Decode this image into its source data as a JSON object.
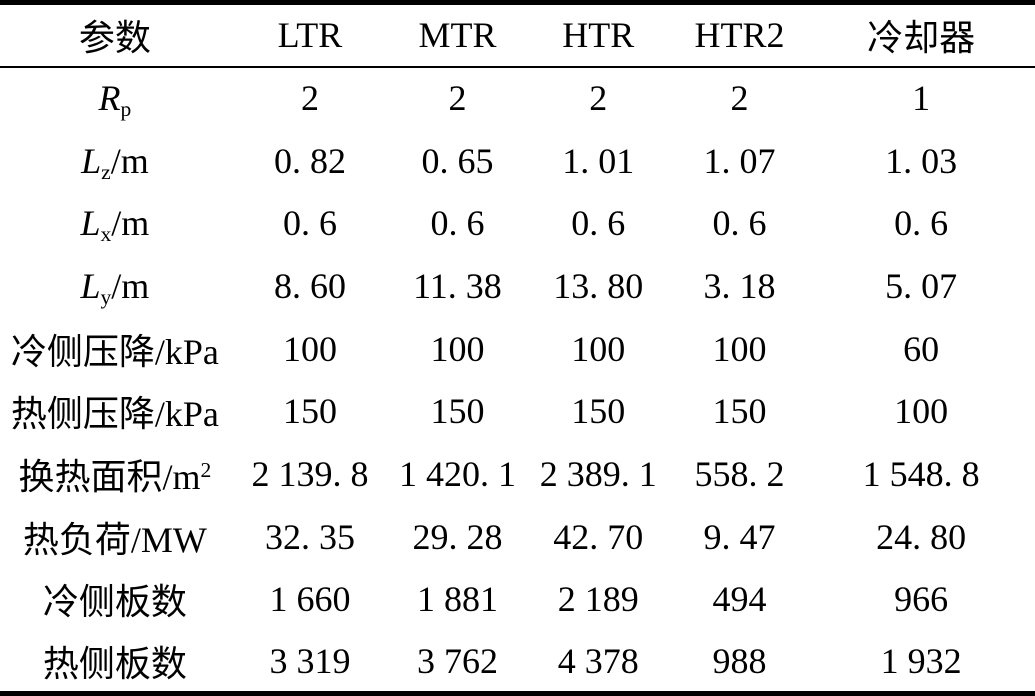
{
  "colors": {
    "background": "#ffffff",
    "text": "#000000",
    "rule": "#000000"
  },
  "table": {
    "columns": [
      "参数",
      "LTR",
      "MTR",
      "HTR",
      "HTR2",
      "冷却器"
    ],
    "rows": [
      {
        "param_parts": [
          {
            "t": "R",
            "style": "italic"
          },
          {
            "t": "p",
            "style": "sub"
          }
        ],
        "values": [
          "2",
          "2",
          "2",
          "2",
          "1"
        ]
      },
      {
        "param_parts": [
          {
            "t": "L",
            "style": "italic"
          },
          {
            "t": "z",
            "style": "sub"
          },
          {
            "t": "/m",
            "style": "normal"
          }
        ],
        "values": [
          "0. 82",
          "0. 65",
          "1. 01",
          "1. 07",
          "1. 03"
        ]
      },
      {
        "param_parts": [
          {
            "t": "L",
            "style": "italic"
          },
          {
            "t": "x",
            "style": "sub"
          },
          {
            "t": "/m",
            "style": "normal"
          }
        ],
        "values": [
          "0. 6",
          "0. 6",
          "0. 6",
          "0. 6",
          "0. 6"
        ]
      },
      {
        "param_parts": [
          {
            "t": "L",
            "style": "italic"
          },
          {
            "t": "y",
            "style": "sub"
          },
          {
            "t": "/m",
            "style": "normal"
          }
        ],
        "values": [
          "8. 60",
          "11. 38",
          "13. 80",
          "3. 18",
          "5. 07"
        ]
      },
      {
        "param_parts": [
          {
            "t": "冷侧压降/kPa",
            "style": "normal"
          }
        ],
        "values": [
          "100",
          "100",
          "100",
          "100",
          "60"
        ]
      },
      {
        "param_parts": [
          {
            "t": "热侧压降/kPa",
            "style": "normal"
          }
        ],
        "values": [
          "150",
          "150",
          "150",
          "150",
          "100"
        ]
      },
      {
        "param_parts": [
          {
            "t": "换热面积/m",
            "style": "normal"
          },
          {
            "t": "2",
            "style": "sup"
          }
        ],
        "values": [
          "2 139. 8",
          "1 420. 1",
          "2 389. 1",
          "558. 2",
          "1 548. 8"
        ]
      },
      {
        "param_parts": [
          {
            "t": "热负荷/MW",
            "style": "normal"
          }
        ],
        "values": [
          "32. 35",
          "29. 28",
          "42. 70",
          "9. 47",
          "24. 80"
        ]
      },
      {
        "param_parts": [
          {
            "t": "冷侧板数",
            "style": "normal"
          }
        ],
        "values": [
          "1 660",
          "1 881",
          "2 189",
          "494",
          "966"
        ]
      },
      {
        "param_parts": [
          {
            "t": "热侧板数",
            "style": "normal"
          }
        ],
        "values": [
          "3 319",
          "3 762",
          "4 378",
          "988",
          "1 932"
        ]
      }
    ]
  }
}
